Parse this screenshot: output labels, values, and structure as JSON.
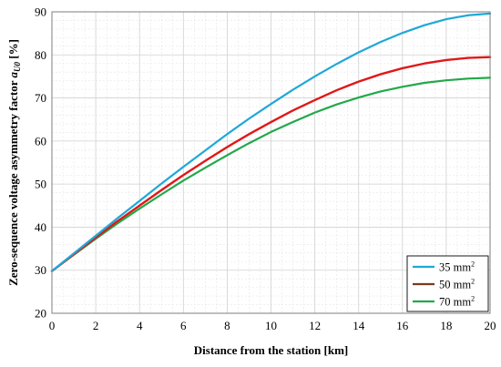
{
  "chart_data": {
    "type": "line",
    "xlabel": "Distance from the station [km]",
    "ylabel_main": "Zero-sequence voltage asymmetry factor ",
    "ylabel_symbol": "a",
    "ylabel_subscript": "U0",
    "ylabel_unit": " [%]",
    "xlim": [
      0,
      20
    ],
    "ylim": [
      20,
      90
    ],
    "x_ticks": [
      0,
      2,
      4,
      6,
      8,
      10,
      12,
      14,
      16,
      18,
      20
    ],
    "y_ticks": [
      20,
      30,
      40,
      50,
      60,
      70,
      80,
      90
    ],
    "grid": true,
    "legend_position": "bottom-right",
    "x": [
      0,
      1,
      2,
      3,
      4,
      5,
      6,
      7,
      8,
      9,
      10,
      11,
      12,
      13,
      14,
      15,
      16,
      17,
      18,
      19,
      20
    ],
    "series": [
      {
        "name": "35 mm",
        "name_sup": "2",
        "color": "#1fa8d8",
        "values": [
          29.8,
          33.9,
          38.0,
          42.1,
          46.1,
          50.1,
          54.0,
          57.8,
          61.6,
          65.2,
          68.6,
          71.9,
          75.0,
          77.9,
          80.6,
          83.0,
          85.1,
          86.9,
          88.3,
          89.2,
          89.6
        ]
      },
      {
        "name": "50 mm",
        "name_sup": "2",
        "color": "#7a3a1c",
        "values": [
          29.8,
          33.7,
          37.6,
          41.4,
          45.0,
          48.6,
          52.1,
          55.4,
          58.6,
          61.6,
          64.4,
          67.1,
          69.5,
          71.8,
          73.8,
          75.5,
          76.9,
          78.0,
          78.8,
          79.3,
          79.5
        ]
      },
      {
        "name": "70 mm",
        "name_sup": "2",
        "color": "#22a84a",
        "values": [
          29.8,
          33.6,
          37.3,
          40.9,
          44.3,
          47.6,
          50.8,
          53.8,
          56.7,
          59.5,
          62.1,
          64.4,
          66.6,
          68.5,
          70.1,
          71.5,
          72.6,
          73.5,
          74.1,
          74.5,
          74.7
        ]
      }
    ],
    "highlight_color": "#e01818"
  }
}
